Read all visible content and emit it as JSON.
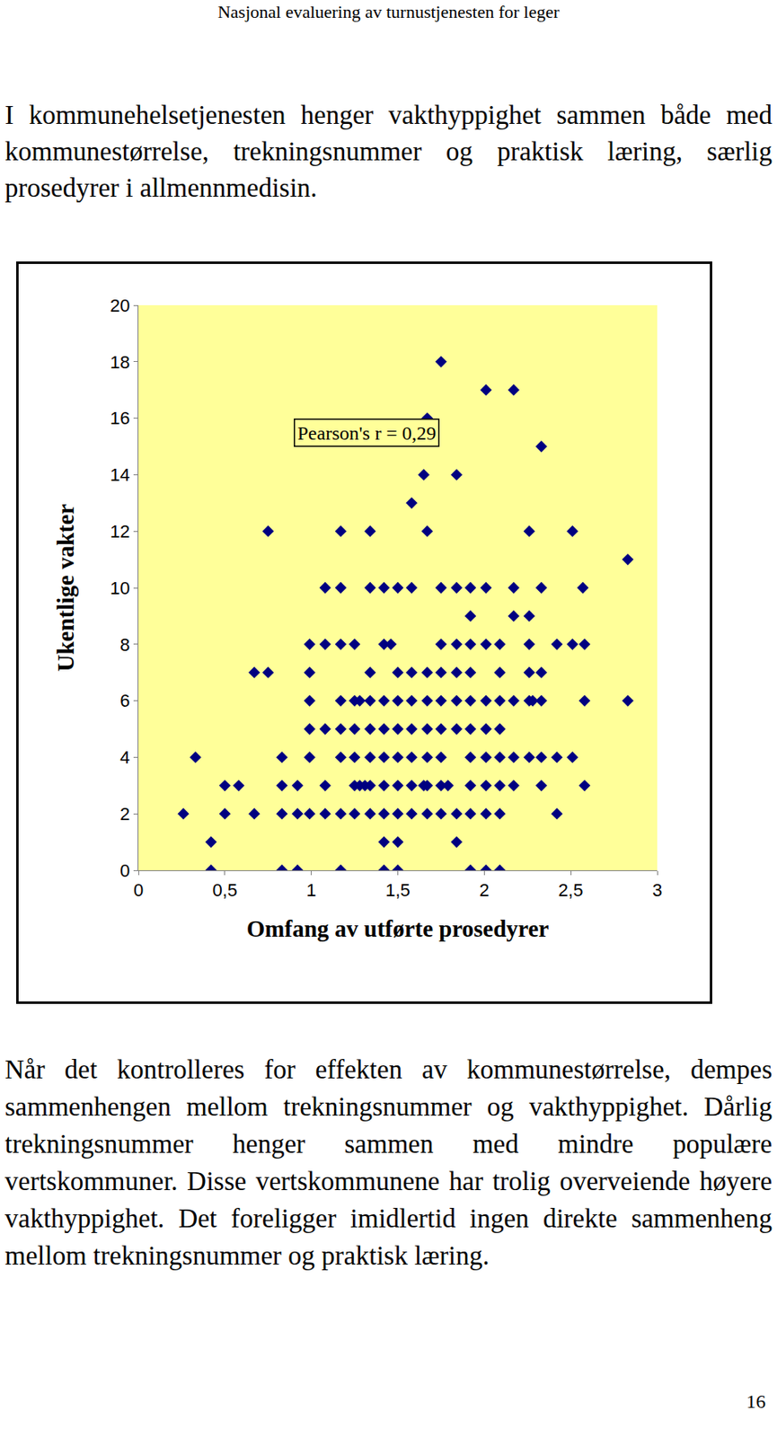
{
  "header": "Nasjonal evaluering av turnustjenesten for leger",
  "paragraphs": [
    "I kommunehelsetjenesten henger vakthyppighet sammen både med kommunestørrelse, trekningsnummer og praktisk læring, særlig prosedyrer i allmennmedisin.",
    "Når det kontrolleres for effekten av kommunestørrelse, dempes sammenhengen mellom trekningsnummer og vakthyppighet. Dårlig trekningsnummer henger sammen med mindre populære vertskommuner. Disse vertskommunene har trolig overveiende høyere vakthyppighet. Det foreligger imidlertid ingen direkte sammenheng mellom trekningsnummer og praktisk læring."
  ],
  "page_number": 16,
  "chart_data": {
    "type": "scatter",
    "x_label": "Omfang av utførte prosedyrer",
    "y_label": "Ukentlige vakter",
    "annotations": [
      "Pearson's r = 0,29"
    ],
    "color": "#000080",
    "marker": "diamond",
    "grid": false,
    "xlim": [
      0,
      3
    ],
    "ylim": [
      0,
      20
    ],
    "xticks": [
      0,
      {
        "value": 0.5,
        "label": "0,5"
      },
      1,
      {
        "value": 1.5,
        "label": "1,5"
      },
      2,
      {
        "value": 2.5,
        "label": "2,5"
      },
      3
    ],
    "yticks": [
      0,
      2,
      4,
      6,
      8,
      10,
      12,
      14,
      16,
      18,
      20
    ],
    "x": [
      1.75,
      2.01,
      2.17,
      1.67,
      2.33,
      1.65,
      1.84,
      1.58,
      0.75,
      1.17,
      1.34,
      1.67,
      2.26,
      2.51,
      2.83,
      1.08,
      1.17,
      1.34,
      1.42,
      1.5,
      1.58,
      1.75,
      1.84,
      1.92,
      2.01,
      2.17,
      2.33,
      2.57,
      1.92,
      2.17,
      2.26,
      0.99,
      1.08,
      1.17,
      1.25,
      1.42,
      1.46,
      1.75,
      1.84,
      1.92,
      2.01,
      2.09,
      2.26,
      2.42,
      2.51,
      2.58,
      0.67,
      0.75,
      0.99,
      1.34,
      1.5,
      1.58,
      1.67,
      1.75,
      1.84,
      1.92,
      2.09,
      2.26,
      2.33,
      0.99,
      1.17,
      1.25,
      1.28,
      1.34,
      1.42,
      1.5,
      1.58,
      1.67,
      1.75,
      1.84,
      1.92,
      2.01,
      2.09,
      2.17,
      2.26,
      2.28,
      2.33,
      2.58,
      2.83,
      0.99,
      1.08,
      1.17,
      1.25,
      1.34,
      1.42,
      1.5,
      1.58,
      1.67,
      1.75,
      1.84,
      1.92,
      2.01,
      2.09,
      0.33,
      0.83,
      0.99,
      1.17,
      1.25,
      1.34,
      1.42,
      1.5,
      1.58,
      1.67,
      1.75,
      1.92,
      2.01,
      2.09,
      2.17,
      2.26,
      2.33,
      2.42,
      2.51,
      0.5,
      0.58,
      0.83,
      0.92,
      1.08,
      1.25,
      1.28,
      1.31,
      1.34,
      1.42,
      1.5,
      1.58,
      1.65,
      1.67,
      1.75,
      1.79,
      1.92,
      2.01,
      2.09,
      2.17,
      2.33,
      2.58,
      0.26,
      0.5,
      0.67,
      0.83,
      0.92,
      0.99,
      1.08,
      1.17,
      1.25,
      1.34,
      1.42,
      1.5,
      1.58,
      1.67,
      1.75,
      1.84,
      1.92,
      2.01,
      2.09,
      2.42,
      0.42,
      1.42,
      1.5,
      1.84,
      0.42,
      0.83,
      0.92,
      1.17,
      1.42,
      1.5,
      1.92,
      2.01,
      2.09
    ],
    "y": [
      18,
      17,
      17,
      16,
      15,
      14,
      14,
      13,
      12,
      12,
      12,
      12,
      12,
      12,
      11,
      10,
      10,
      10,
      10,
      10,
      10,
      10,
      10,
      10,
      10,
      10,
      10,
      10,
      9,
      9,
      9,
      8,
      8,
      8,
      8,
      8,
      8,
      8,
      8,
      8,
      8,
      8,
      8,
      8,
      8,
      8,
      7,
      7,
      7,
      7,
      7,
      7,
      7,
      7,
      7,
      7,
      7,
      7,
      7,
      6,
      6,
      6,
      6,
      6,
      6,
      6,
      6,
      6,
      6,
      6,
      6,
      6,
      6,
      6,
      6,
      6,
      6,
      6,
      6,
      5,
      5,
      5,
      5,
      5,
      5,
      5,
      5,
      5,
      5,
      5,
      5,
      5,
      5,
      4,
      4,
      4,
      4,
      4,
      4,
      4,
      4,
      4,
      4,
      4,
      4,
      4,
      4,
      4,
      4,
      4,
      4,
      4,
      3,
      3,
      3,
      3,
      3,
      3,
      3,
      3,
      3,
      3,
      3,
      3,
      3,
      3,
      3,
      3,
      3,
      3,
      3,
      3,
      3,
      3,
      2,
      2,
      2,
      2,
      2,
      2,
      2,
      2,
      2,
      2,
      2,
      2,
      2,
      2,
      2,
      2,
      2,
      2,
      2,
      2,
      1,
      1,
      1,
      1,
      0,
      0,
      0,
      0,
      0,
      0,
      0,
      0,
      0
    ]
  }
}
